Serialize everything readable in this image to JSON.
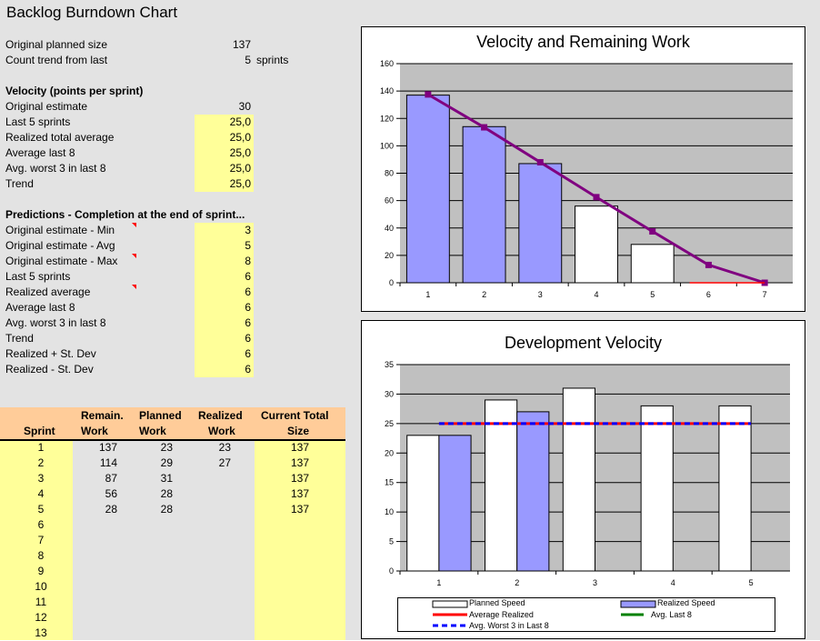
{
  "sheet": {
    "title": "Backlog Burndown Chart",
    "original_planned_size": {
      "label": "Original planned size",
      "value": "137"
    },
    "count_trend": {
      "label": "Count trend from last",
      "value": "5",
      "unit": "sprints"
    },
    "velocity": {
      "heading": "Velocity (points per sprint)",
      "rows": [
        {
          "label": "Original estimate",
          "value": "30"
        },
        {
          "label": "Last 5 sprints",
          "value": "25,0"
        },
        {
          "label": "Realized total average",
          "value": "25,0"
        },
        {
          "label": "Average last 8",
          "value": "25,0"
        },
        {
          "label": "Avg. worst 3 in last 8",
          "value": "25,0"
        },
        {
          "label": "Trend",
          "value": "25,0"
        }
      ]
    },
    "predictions": {
      "heading": "Predictions - Completion at the end of sprint...",
      "rows": [
        {
          "label": "Original estimate - Min",
          "value": "3"
        },
        {
          "label": "Original estimate - Avg",
          "value": "5"
        },
        {
          "label": "Original estimate - Max",
          "value": "8"
        },
        {
          "label": "Last 5 sprints",
          "value": "6"
        },
        {
          "label": "Realized average",
          "value": "6"
        },
        {
          "label": "Average last 8",
          "value": "6"
        },
        {
          "label": "Avg. worst 3 in last 8",
          "value": "6"
        },
        {
          "label": "Trend",
          "value": "6"
        },
        {
          "label": "Realized + St. Dev",
          "value": "6"
        },
        {
          "label": "Realized - St. Dev",
          "value": "6"
        }
      ]
    },
    "table": {
      "headers": {
        "sprint": "Sprint",
        "remain_1": "Remain.",
        "remain_2": "Work",
        "planned_1": "Planned",
        "planned_2": "Work",
        "realized_1": "Realized",
        "realized_2": "Work",
        "size_1": "Current Total",
        "size_2": "Size"
      },
      "rows": [
        {
          "sprint": "1",
          "remain": "137",
          "planned": "23",
          "realized": "23",
          "size": "137"
        },
        {
          "sprint": "2",
          "remain": "114",
          "planned": "29",
          "realized": "27",
          "size": "137"
        },
        {
          "sprint": "3",
          "remain": "87",
          "planned": "31",
          "realized": "",
          "size": "137"
        },
        {
          "sprint": "4",
          "remain": "56",
          "planned": "28",
          "realized": "",
          "size": "137"
        },
        {
          "sprint": "5",
          "remain": "28",
          "planned": "28",
          "realized": "",
          "size": "137"
        },
        {
          "sprint": "6",
          "remain": "",
          "planned": "",
          "realized": "",
          "size": ""
        },
        {
          "sprint": "7",
          "remain": "",
          "planned": "",
          "realized": "",
          "size": ""
        },
        {
          "sprint": "8",
          "remain": "",
          "planned": "",
          "realized": "",
          "size": ""
        },
        {
          "sprint": "9",
          "remain": "",
          "planned": "",
          "realized": "",
          "size": ""
        },
        {
          "sprint": "10",
          "remain": "",
          "planned": "",
          "realized": "",
          "size": ""
        },
        {
          "sprint": "11",
          "remain": "",
          "planned": "",
          "realized": "",
          "size": ""
        },
        {
          "sprint": "12",
          "remain": "",
          "planned": "",
          "realized": "",
          "size": ""
        },
        {
          "sprint": "13",
          "remain": "",
          "planned": "",
          "realized": "",
          "size": ""
        }
      ]
    },
    "colors": {
      "input_yellow": "#ffff99",
      "header_orange": "#ffcc99",
      "comment_red": "#ff0000"
    }
  },
  "chart_data": [
    {
      "type": "bar",
      "title": "Velocity and Remaining Work",
      "categories": [
        "1",
        "2",
        "3",
        "4",
        "5",
        "6",
        "7"
      ],
      "ylim": [
        0,
        160
      ],
      "yticks": [
        0,
        20,
        40,
        60,
        80,
        100,
        120,
        140,
        160
      ],
      "grid": true,
      "series": [
        {
          "values": [
            137,
            114,
            87,
            null,
            null,
            null,
            null
          ],
          "kind": "bar",
          "color": "#9999ff"
        },
        {
          "values": [
            null,
            null,
            null,
            56,
            28,
            null,
            null
          ],
          "kind": "bar",
          "color": "#ffffff"
        },
        {
          "values": [
            137.5,
            113.5,
            88,
            62.5,
            37.5,
            13,
            0
          ],
          "kind": "line",
          "color": "#800080"
        }
      ],
      "colors": {
        "plot_bg": "#c0c0c0"
      }
    },
    {
      "type": "bar",
      "title": "Development Velocity",
      "categories": [
        "1",
        "2",
        "3",
        "4",
        "5"
      ],
      "ylim": [
        0,
        35
      ],
      "yticks": [
        0,
        5,
        10,
        15,
        20,
        25,
        30,
        35
      ],
      "grid": true,
      "legend": "bottom",
      "series": [
        {
          "name": "Planned Speed",
          "kind": "bar",
          "values": [
            23,
            29,
            31,
            28,
            28
          ],
          "color": "#ffffff"
        },
        {
          "name": "Realized Speed",
          "kind": "bar",
          "values": [
            23,
            27,
            null,
            null,
            null
          ],
          "color": "#9999ff"
        },
        {
          "name": "Average Realized",
          "kind": "line",
          "values": [
            25,
            25,
            25,
            25,
            25
          ],
          "color": "#ff0000"
        },
        {
          "name": "Avg. Last 8",
          "kind": "line",
          "values": [
            null,
            null,
            null,
            null,
            null
          ],
          "color": "#008000"
        },
        {
          "name": "Avg. Worst 3 in Last 8",
          "kind": "line",
          "values": [
            25,
            25,
            25,
            25,
            25
          ],
          "color": "#0000ff"
        }
      ],
      "colors": {
        "plot_bg": "#c0c0c0"
      }
    }
  ]
}
